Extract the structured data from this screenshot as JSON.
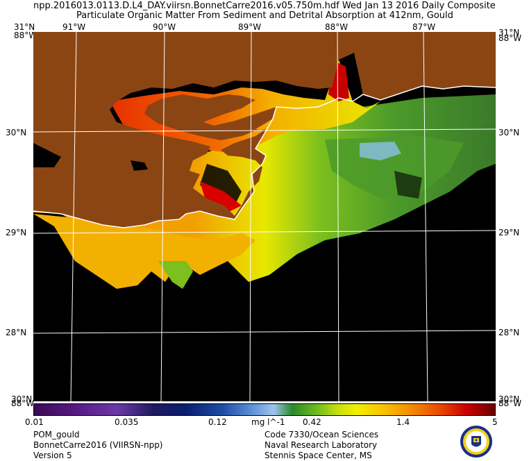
{
  "header": {
    "line1": "npp.2016013.0113.D.L4_DAY.viirsn.BonnetCarre2016.v05.750m.hdf     Wed Jan 13 2016 Daily Composite",
    "line2": "Particulate Organic Matter From Sediment and Detrital Absorption at 412nm, Gould"
  },
  "axes": {
    "top_lon": [
      "91°W",
      "90°W",
      "89°W",
      "88°W",
      "87°W"
    ],
    "corner_top_left": "31°N",
    "corner_top_right": "31°N",
    "corner_top_left_overlap": "88°W",
    "corner_top_right_overlap": "88°W",
    "lat_left": [
      "30°N",
      "29°N",
      "28°N"
    ],
    "lat_right": [
      "30°N",
      "29°N",
      "28°N"
    ],
    "bottom_left_overlap": "88°W",
    "bottom_left_lat": "30°N",
    "bottom_right_overlap": "88°W",
    "bottom_right_lat": "30°N"
  },
  "colorbar": {
    "ticks": [
      "0.01",
      "0.035",
      "0.12",
      "mg l^-1",
      "0.42",
      "1.4",
      "5"
    ]
  },
  "footer_left": [
    "POM_gould",
    "BonnetCarre2016 (VIIRSN-npp)",
    "Version 5"
  ],
  "footer_right": [
    "Code 7330/Ocean Sciences",
    "Naval Research Laboratory",
    "Stennis Space Center, MS"
  ],
  "colors": {
    "land": "#8b4513",
    "ocean": "#000000",
    "grid": "#ffffff"
  },
  "icons": {
    "seal": "nrl-seal-icon"
  }
}
